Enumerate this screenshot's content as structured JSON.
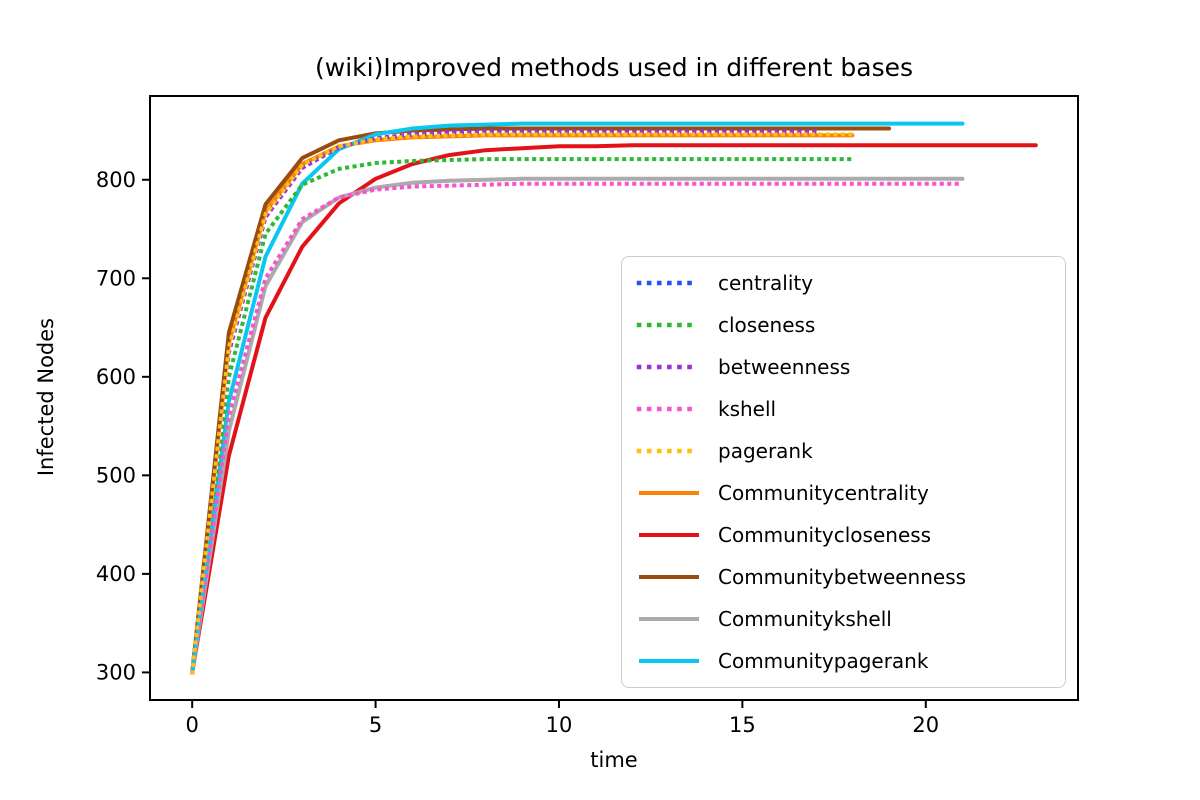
{
  "figure": {
    "background": "#ffffff",
    "frame_color": "#000000",
    "text_color": "#000000",
    "legend_border_color": "#cccccc"
  },
  "chart_data": {
    "type": "line",
    "title": "(wiki)Improved methods used in different bases",
    "xlabel": "time",
    "ylabel": "Infected Nodes",
    "xlim": [
      -1.15,
      24.15
    ],
    "ylim": [
      272,
      885
    ],
    "x_ticks": [
      0,
      5,
      10,
      15,
      20
    ],
    "y_ticks": [
      300,
      400,
      500,
      600,
      700,
      800
    ],
    "grid": false,
    "legend_position": "center-right",
    "x_start": 0,
    "x_step": 1,
    "series": [
      {
        "name": "centrality",
        "color": "#2453f0",
        "style": "dotted",
        "values": [
          300,
          625,
          762,
          812,
          833,
          842,
          846,
          848,
          849,
          849,
          849,
          849,
          849,
          849,
          849,
          849,
          849,
          849
        ]
      },
      {
        "name": "closeness",
        "color": "#2eb835",
        "style": "dotted",
        "values": [
          300,
          600,
          745,
          795,
          811,
          817,
          819,
          820,
          821,
          821,
          821,
          821,
          821,
          821,
          821,
          821,
          821,
          821,
          821
        ]
      },
      {
        "name": "betweenness",
        "color": "#9e30d6",
        "style": "dotted",
        "values": [
          300,
          625,
          762,
          812,
          833,
          842,
          846,
          848,
          849,
          849,
          849,
          849,
          849,
          849,
          849,
          849,
          849,
          849
        ]
      },
      {
        "name": "kshell",
        "color": "#f655cf",
        "style": "dotted",
        "values": [
          300,
          560,
          700,
          760,
          782,
          790,
          793,
          794,
          795,
          796,
          796,
          796,
          796,
          796,
          796,
          796,
          796,
          796,
          796,
          796,
          796,
          796
        ]
      },
      {
        "name": "pagerank",
        "color": "#fdc010",
        "style": "dotted",
        "values": [
          300,
          630,
          765,
          815,
          834,
          841,
          844,
          845,
          846,
          846,
          846,
          846,
          846,
          846,
          846,
          846,
          846,
          846,
          846
        ]
      },
      {
        "name": "Communitycentrality",
        "color": "#fb8208",
        "style": "solid",
        "values": [
          300,
          635,
          768,
          816,
          834,
          840,
          843,
          844,
          845,
          845,
          845,
          845,
          845,
          845,
          845,
          845,
          845,
          845,
          845
        ]
      },
      {
        "name": "Communitycloseness",
        "color": "#e31118",
        "style": "solid",
        "values": [
          300,
          520,
          660,
          732,
          776,
          801,
          816,
          825,
          830,
          832,
          834,
          834,
          835,
          835,
          835,
          835,
          835,
          835,
          835,
          835,
          835,
          835,
          835,
          835
        ]
      },
      {
        "name": "Communitybetweenness",
        "color": "#9a4b0f",
        "style": "solid",
        "values": [
          300,
          645,
          775,
          822,
          840,
          847,
          850,
          851,
          852,
          852,
          852,
          852,
          852,
          852,
          852,
          852,
          852,
          852,
          852,
          852
        ]
      },
      {
        "name": "Communitykshell",
        "color": "#ababab",
        "style": "solid",
        "values": [
          300,
          545,
          692,
          757,
          782,
          792,
          797,
          799,
          800,
          801,
          801,
          801,
          801,
          801,
          801,
          801,
          801,
          801,
          801,
          801,
          801,
          801
        ]
      },
      {
        "name": "Communitypagerank",
        "color": "#0ac7f1",
        "style": "solid",
        "values": [
          300,
          575,
          722,
          796,
          831,
          846,
          852,
          855,
          856,
          857,
          857,
          857,
          857,
          857,
          857,
          857,
          857,
          857,
          857,
          857,
          857,
          857
        ]
      }
    ]
  }
}
